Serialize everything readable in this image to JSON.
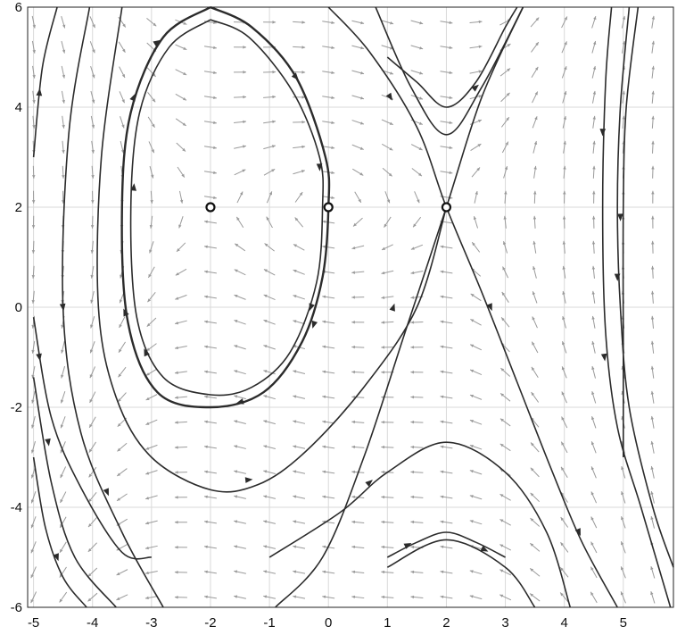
{
  "chart_data": {
    "type": "phase-portrait",
    "title": "",
    "xlabel": "",
    "ylabel": "",
    "xlim": [
      -5.1,
      5.85
    ],
    "ylim": [
      -6,
      6
    ],
    "grid": true,
    "xticks": [
      -5,
      -4,
      -3,
      -2,
      -1,
      0,
      1,
      2,
      3,
      4,
      5
    ],
    "yticks": [
      -6,
      -4,
      -2,
      0,
      2,
      4,
      6
    ],
    "xtick_labels": [
      "-5",
      "-4",
      "-3",
      "-2",
      "-1",
      "0",
      "1",
      "2",
      "3",
      "4",
      "5"
    ],
    "ytick_labels": [
      "-6",
      "-4",
      "-2",
      "0",
      "2",
      "4",
      "6"
    ],
    "equilibria": [
      {
        "x": -2,
        "y": 2,
        "kind": "center"
      },
      {
        "x": 0,
        "y": 2,
        "kind": "center"
      },
      {
        "x": 2,
        "y": 2,
        "kind": "saddle"
      }
    ],
    "trajectories": [
      {
        "name": "orbit-outer",
        "points": [
          [
            -2,
            6
          ],
          [
            -1.3,
            5.6
          ],
          [
            -0.55,
            4.6
          ],
          [
            -0.05,
            3
          ],
          [
            0,
            2
          ],
          [
            -0.1,
            0.6
          ],
          [
            -0.45,
            -0.7
          ],
          [
            -1.1,
            -1.7
          ],
          [
            -2,
            -2
          ],
          [
            -2.9,
            -1.7
          ],
          [
            -3.4,
            -0.3
          ],
          [
            -3.5,
            2
          ],
          [
            -3.35,
            3.9
          ],
          [
            -2.8,
            5.4
          ],
          [
            -2,
            6
          ]
        ],
        "arrows": [
          [
            -0.55,
            4.6
          ],
          [
            -0.25,
            -0.35
          ],
          [
            -1.5,
            -1.9
          ],
          [
            -3.45,
            -0.1
          ],
          [
            -3.3,
            4.2
          ],
          [
            -2.9,
            5.3
          ]
        ]
      },
      {
        "name": "orbit-inner",
        "points": [
          [
            -2,
            5.75
          ],
          [
            -1.35,
            5.4
          ],
          [
            -0.6,
            4.3
          ],
          [
            -0.15,
            3
          ],
          [
            -0.1,
            2
          ],
          [
            -0.2,
            0.5
          ],
          [
            -0.65,
            -0.9
          ],
          [
            -1.3,
            -1.6
          ],
          [
            -2,
            -1.75
          ],
          [
            -2.8,
            -1.4
          ],
          [
            -3.25,
            -0.2
          ],
          [
            -3.35,
            2
          ],
          [
            -3.2,
            3.9
          ],
          [
            -2.7,
            5.2
          ],
          [
            -2,
            5.75
          ]
        ],
        "arrows": [
          [
            -0.15,
            2.8
          ],
          [
            -3.3,
            2.4
          ],
          [
            -3.1,
            -0.9
          ],
          [
            -0.3,
            0
          ]
        ]
      },
      {
        "name": "sep-a",
        "points": [
          [
            0,
            6
          ],
          [
            0.7,
            5.1
          ],
          [
            1.5,
            3.6
          ],
          [
            2,
            2
          ],
          [
            2.6,
            0.3
          ],
          [
            3.2,
            -1.5
          ],
          [
            3.8,
            -3.3
          ],
          [
            4.3,
            -4.7
          ],
          [
            4.9,
            -6
          ]
        ],
        "arrows": [
          [
            1.05,
            4.2
          ],
          [
            2.75,
            0
          ],
          [
            4.25,
            -4.5
          ]
        ]
      },
      {
        "name": "sep-b",
        "points": [
          [
            -0.9,
            -6
          ],
          [
            -0.1,
            -5
          ],
          [
            0.6,
            -3
          ],
          [
            1.3,
            -0.5
          ],
          [
            2,
            2
          ],
          [
            2.6,
            4.2
          ],
          [
            3.3,
            6
          ]
        ],
        "arrows": [
          [
            1.1,
            0
          ]
        ]
      },
      {
        "name": "hyperbola-upper-outer",
        "points": [
          [
            1,
            5
          ],
          [
            1.5,
            4.5
          ],
          [
            2,
            4
          ],
          [
            2.5,
            4.5
          ],
          [
            3,
            5.6
          ],
          [
            3.2,
            6
          ]
        ],
        "arrows": [
          [
            2.5,
            4.4
          ]
        ]
      },
      {
        "name": "hyperbola-upper-inner",
        "points": [
          [
            0.8,
            6
          ],
          [
            1.4,
            4.4
          ],
          [
            2,
            3.45
          ],
          [
            2.6,
            4.4
          ],
          [
            3.3,
            6
          ]
        ]
      },
      {
        "name": "hyperbola-lower-outer",
        "points": [
          [
            -1,
            -5
          ],
          [
            0.2,
            -4.1
          ],
          [
            1,
            -3.3
          ],
          [
            2,
            -2.7
          ],
          [
            3,
            -3.3
          ],
          [
            3.7,
            -4.5
          ],
          [
            4.1,
            -6
          ]
        ],
        "arrows": [
          [
            0.7,
            -3.5
          ]
        ]
      },
      {
        "name": "hyperbola-lower-mid",
        "points": [
          [
            1,
            -5
          ],
          [
            1.5,
            -4.7
          ],
          [
            2,
            -4.5
          ],
          [
            2.5,
            -4.7
          ],
          [
            3,
            -5
          ]
        ],
        "arrows": [
          [
            1.35,
            -4.75
          ],
          [
            2.65,
            -4.85
          ]
        ]
      },
      {
        "name": "hyperbola-lower-inner",
        "points": [
          [
            1,
            -5.2
          ],
          [
            2,
            -4.65
          ],
          [
            3,
            -5.2
          ],
          [
            3.5,
            -6
          ]
        ]
      },
      {
        "name": "band-left-1",
        "points": [
          [
            -5,
            3
          ],
          [
            -4.85,
            4.8
          ],
          [
            -4.6,
            6
          ]
        ],
        "arrows": [
          [
            -4.9,
            4.3
          ]
        ]
      },
      {
        "name": "band-left-2",
        "points": [
          [
            -4.05,
            6
          ],
          [
            -4.4,
            3.5
          ],
          [
            -4.5,
            0
          ],
          [
            -4.2,
            -2.5
          ],
          [
            -3.5,
            -4.5
          ],
          [
            -2.8,
            -6
          ]
        ],
        "arrows": [
          [
            -4.5,
            0
          ],
          [
            -3.75,
            -3.7
          ]
        ]
      },
      {
        "name": "band-left-3",
        "points": [
          [
            -3.5,
            6
          ],
          [
            -3.85,
            3
          ],
          [
            -3.9,
            0
          ],
          [
            -3.6,
            -1.8
          ],
          [
            -3,
            -3
          ],
          [
            -2,
            -3.65
          ],
          [
            -1.2,
            -3.55
          ],
          [
            -0.4,
            -2.9
          ],
          [
            0.6,
            -1.6
          ],
          [
            1.5,
            0
          ],
          [
            2,
            2
          ]
        ],
        "arrows": [
          [
            -1.35,
            -3.45
          ]
        ]
      },
      {
        "name": "band-left-4",
        "points": [
          [
            -5,
            -3
          ],
          [
            -4.8,
            -4.4
          ],
          [
            -4.5,
            -5.4
          ],
          [
            -4.1,
            -6
          ]
        ],
        "arrows": [
          [
            -4.6,
            -5
          ]
        ]
      },
      {
        "name": "band-left-5",
        "points": [
          [
            -5,
            -1.4
          ],
          [
            -4.7,
            -3.5
          ],
          [
            -4.3,
            -5
          ],
          [
            -3.6,
            -6
          ]
        ],
        "arrows": [
          [
            -4.75,
            -2.7
          ]
        ]
      },
      {
        "name": "band-left-6",
        "points": [
          [
            -5,
            -0.2
          ],
          [
            -4.7,
            -2.2
          ],
          [
            -4.2,
            -3.6
          ],
          [
            -3.5,
            -4.9
          ],
          [
            -3,
            -5
          ]
        ],
        "arrows": [
          [
            -4.9,
            -1
          ]
        ]
      },
      {
        "name": "band-right-1",
        "points": [
          [
            4.8,
            6
          ],
          [
            4.7,
            4.5
          ],
          [
            4.65,
            2
          ],
          [
            4.7,
            -0.5
          ],
          [
            4.9,
            -2.4
          ],
          [
            5.3,
            -4
          ],
          [
            5.8,
            -6
          ]
        ],
        "arrows": [
          [
            4.65,
            3.5
          ],
          [
            4.68,
            -1
          ]
        ]
      },
      {
        "name": "band-right-2",
        "points": [
          [
            5.1,
            6
          ],
          [
            4.95,
            4
          ],
          [
            4.9,
            2
          ],
          [
            4.95,
            0
          ],
          [
            5.1,
            -2
          ],
          [
            5.5,
            -4
          ],
          [
            5.85,
            -5.2
          ]
        ],
        "arrows": [
          [
            4.95,
            1.8
          ],
          [
            4.9,
            0.6
          ]
        ]
      },
      {
        "name": "band-right-3",
        "points": [
          [
            5.25,
            6
          ],
          [
            5.05,
            4
          ],
          [
            5,
            2
          ],
          [
            5,
            -1
          ],
          [
            5,
            -3
          ]
        ]
      }
    ]
  }
}
